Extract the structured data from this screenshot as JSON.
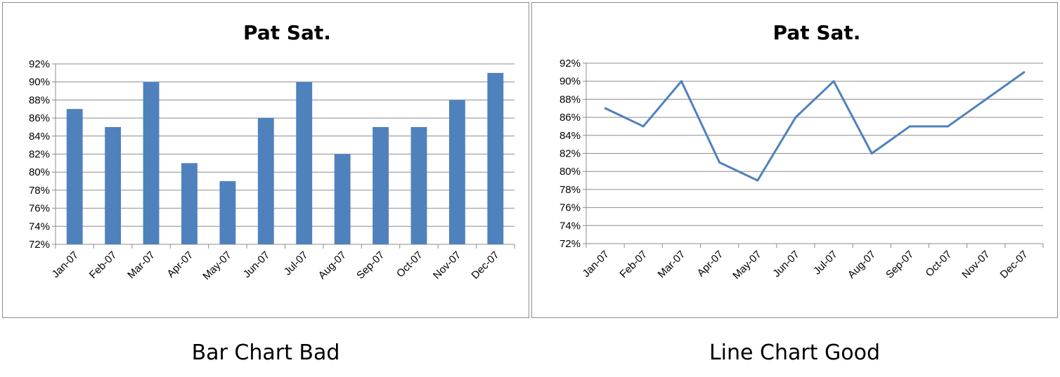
{
  "chart_data": [
    {
      "type": "bar",
      "title": "Pat Sat.",
      "categories": [
        "Jan-07",
        "Feb-07",
        "Mar-07",
        "Apr-07",
        "May-07",
        "Jun-07",
        "Jul-07",
        "Aug-07",
        "Sep-07",
        "Oct-07",
        "Nov-07",
        "Dec-07"
      ],
      "values": [
        87,
        85,
        90,
        81,
        79,
        86,
        90,
        82,
        85,
        85,
        88,
        91
      ],
      "ylim": [
        72,
        92
      ],
      "yticks": [
        "72%",
        "74%",
        "76%",
        "78%",
        "80%",
        "82%",
        "84%",
        "86%",
        "88%",
        "90%",
        "92%"
      ],
      "grid": true,
      "color": "#4f81bd"
    },
    {
      "type": "line",
      "title": "Pat Sat.",
      "categories": [
        "Jan-07",
        "Feb-07",
        "Mar-07",
        "Apr-07",
        "May-07",
        "Jun-07",
        "Jul-07",
        "Aug-07",
        "Sep-07",
        "Oct-07",
        "Nov-07",
        "Dec-07"
      ],
      "values": [
        87,
        85,
        90,
        81,
        79,
        86,
        90,
        82,
        85,
        85,
        88,
        91
      ],
      "ylim": [
        72,
        92
      ],
      "yticks": [
        "72%",
        "74%",
        "76%",
        "78%",
        "80%",
        "82%",
        "84%",
        "86%",
        "88%",
        "90%",
        "92%"
      ],
      "grid": true,
      "color": "#4f81bd"
    }
  ],
  "captions": {
    "left": "Bar Chart Bad",
    "right": "Line Chart Good"
  }
}
